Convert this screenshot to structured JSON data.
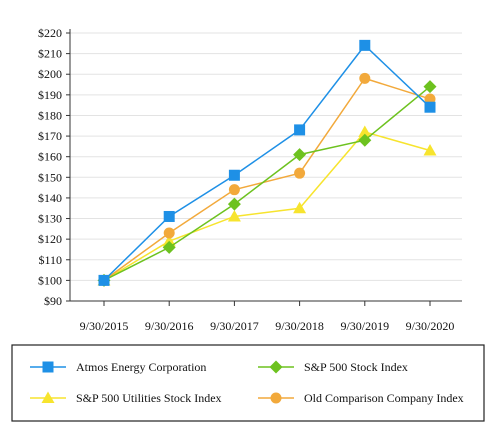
{
  "chart_data": {
    "type": "line",
    "categories": [
      "9/30/2015",
      "9/30/2016",
      "9/30/2017",
      "9/30/2018",
      "9/30/2019",
      "9/30/2020"
    ],
    "y_tick_labels": [
      "$90",
      "$100",
      "$110",
      "$120",
      "$130",
      "$140",
      "$150",
      "$160",
      "$170",
      "$180",
      "$190",
      "$200",
      "$210",
      "$220"
    ],
    "ylim": [
      90,
      220
    ],
    "y_tick_step": 10,
    "grid": "horizontal",
    "legend_position": "bottom",
    "series": [
      {
        "name": "Atmos Energy Corporation",
        "values": [
          100,
          131,
          151,
          173,
          214,
          184
        ],
        "color": "#1e90e6",
        "marker": "square"
      },
      {
        "name": "S&P 500 Stock Index",
        "values": [
          100,
          116,
          137,
          161,
          168,
          194
        ],
        "color": "#6dc21f",
        "marker": "diamond"
      },
      {
        "name": "S&P 500 Utilities Stock Index",
        "values": [
          100,
          119,
          131,
          135,
          172,
          163
        ],
        "color": "#f7e42e",
        "marker": "triangle"
      },
      {
        "name": "Old Comparison Company Index",
        "values": [
          100,
          123,
          144,
          152,
          198,
          188
        ],
        "color": "#f2a93b",
        "marker": "circle"
      }
    ]
  }
}
